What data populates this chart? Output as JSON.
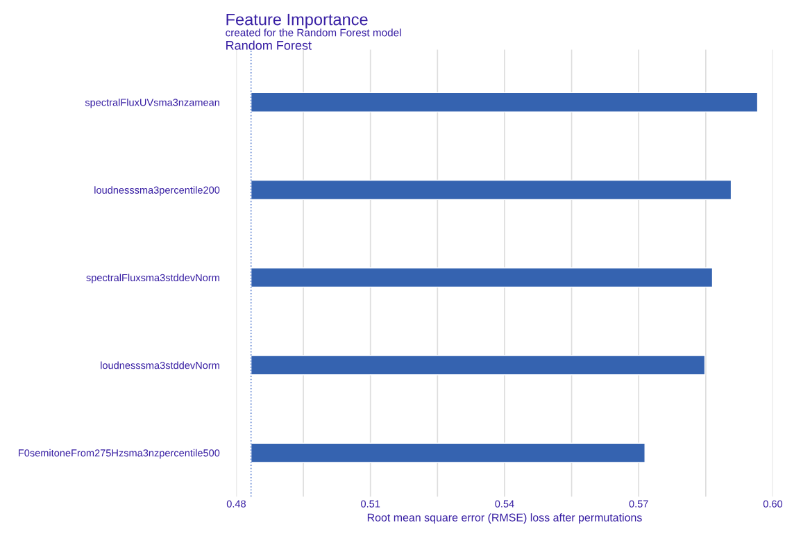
{
  "chart_data": {
    "type": "bar",
    "orientation": "horizontal",
    "title": "Feature Importance",
    "subtitle": "created for the Random Forest model",
    "annotations": [
      "Random Forest"
    ],
    "xlabel": "Root mean square error (RMSE) loss after permutations",
    "categories": [
      "spectralFluxUVsma3nzamean",
      "loudnesssma3percentile200",
      "spectralFluxsma3stddevNorm",
      "loudnesssma3stddevNorm",
      "F0semitoneFrom275Hzsma3nzpercentile500"
    ],
    "values": [
      0.1133,
      0.1074,
      0.1032,
      0.1015,
      0.0881
    ],
    "base": [
      0.4833,
      0.4833,
      0.4833,
      0.4833,
      0.4833
    ],
    "color": "#3563b0",
    "xlim": [
      0.48,
      0.6
    ],
    "xticks": [
      0.48,
      {
        "value": 0.495,
        "label": null
      },
      0.51,
      {
        "value": 0.525,
        "label": null
      },
      0.54,
      {
        "value": 0.555,
        "label": null
      },
      0.57,
      {
        "value": 0.585,
        "label": null
      },
      {
        "value": 0.6,
        "label": "0.60"
      }
    ],
    "grid": "x",
    "ref_lines": [
      {
        "axis": "x",
        "value": 0.4833,
        "color": "#5b80d0",
        "line_style": "dotted"
      }
    ]
  }
}
